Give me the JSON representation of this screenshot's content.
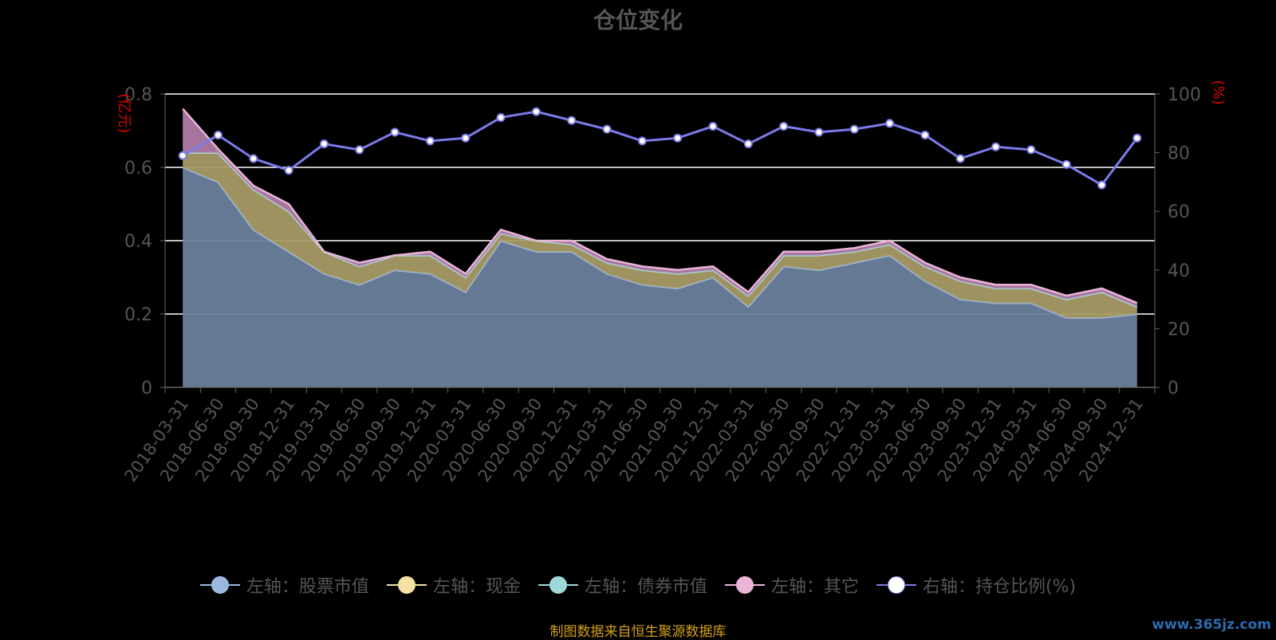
{
  "chart_data": {
    "type": "area",
    "title": "仓位变化",
    "y_left_label": "(亿元)",
    "y_right_label": "(%)",
    "ylim_left": [
      0,
      0.8
    ],
    "yticks_left": [
      0,
      0.2,
      0.4,
      0.6,
      0.8
    ],
    "ylim_right": [
      0,
      100
    ],
    "yticks_right": [
      0,
      20,
      40,
      60,
      80,
      100
    ],
    "grid": true,
    "legend_position": "bottom",
    "categories": [
      "2018-03-31",
      "2018-06-30",
      "2018-09-30",
      "2018-12-31",
      "2019-03-31",
      "2019-06-30",
      "2019-09-30",
      "2019-12-31",
      "2020-03-31",
      "2020-06-30",
      "2020-09-30",
      "2020-12-31",
      "2021-03-31",
      "2021-06-30",
      "2021-09-30",
      "2021-12-31",
      "2022-03-31",
      "2022-06-30",
      "2022-09-30",
      "2022-12-31",
      "2023-03-31",
      "2023-06-30",
      "2023-09-30",
      "2023-12-31",
      "2024-03-31",
      "2024-06-30",
      "2024-09-30",
      "2024-12-31"
    ],
    "series": [
      {
        "name": "左轴：股票市值",
        "axis": "left",
        "color": "#9db8e0",
        "values": [
          0.6,
          0.56,
          0.43,
          0.37,
          0.31,
          0.28,
          0.32,
          0.31,
          0.26,
          0.4,
          0.37,
          0.37,
          0.31,
          0.28,
          0.27,
          0.3,
          0.22,
          0.33,
          0.32,
          0.34,
          0.36,
          0.29,
          0.24,
          0.23,
          0.23,
          0.19,
          0.19,
          0.2
        ]
      },
      {
        "name": "左轴：现金",
        "axis": "left",
        "color": "#f6e3a3",
        "values": [
          0.04,
          0.08,
          0.11,
          0.11,
          0.06,
          0.05,
          0.04,
          0.05,
          0.04,
          0.02,
          0.03,
          0.02,
          0.03,
          0.04,
          0.04,
          0.02,
          0.03,
          0.03,
          0.04,
          0.03,
          0.03,
          0.04,
          0.05,
          0.04,
          0.04,
          0.05,
          0.07,
          0.02
        ]
      },
      {
        "name": "左轴：债券市值",
        "axis": "left",
        "color": "#9ed8d8",
        "values": [
          0,
          0,
          0,
          0,
          0,
          0,
          0,
          0,
          0,
          0,
          0,
          0,
          0,
          0,
          0,
          0,
          0,
          0,
          0,
          0,
          0,
          0,
          0,
          0,
          0,
          0,
          0,
          0
        ]
      },
      {
        "name": "左轴：其它",
        "axis": "left",
        "color": "#e8b4d8",
        "values": [
          0.12,
          0.01,
          0.01,
          0.02,
          0.0,
          0.01,
          0.0,
          0.01,
          0.01,
          0.01,
          0.0,
          0.01,
          0.01,
          0.01,
          0.01,
          0.01,
          0.01,
          0.01,
          0.01,
          0.01,
          0.01,
          0.01,
          0.01,
          0.01,
          0.01,
          0.01,
          0.01,
          0.01
        ]
      },
      {
        "name": "右轴：持仓比例(%)",
        "axis": "right",
        "color": "#7b7bea",
        "values": [
          79,
          86,
          78,
          74,
          83,
          81,
          87,
          84,
          85,
          92,
          94,
          91,
          88,
          84,
          85,
          89,
          83,
          89,
          87,
          88,
          90,
          86,
          78,
          82,
          81,
          76,
          69,
          85
        ]
      }
    ]
  },
  "source_text": "制图数据来自恒生聚源数据库",
  "watermark": "www.365jz.com"
}
